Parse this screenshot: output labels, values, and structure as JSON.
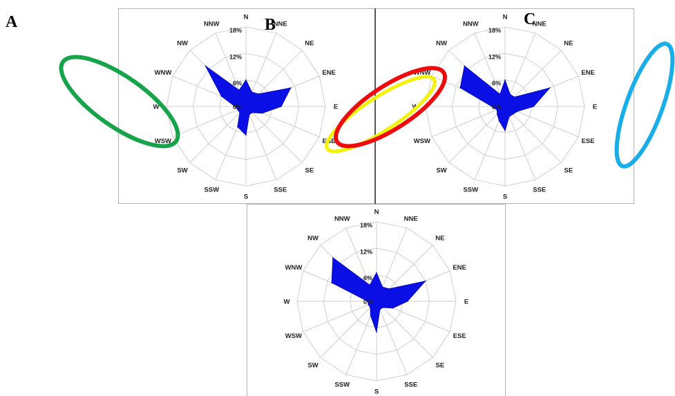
{
  "panel_letters": {
    "a": "A",
    "b": "B",
    "c": "C"
  },
  "chart_data": [
    {
      "type": "radar",
      "title": "",
      "directions": [
        "N",
        "NNE",
        "NE",
        "ENE",
        "E",
        "ESE",
        "SE",
        "SSE",
        "S",
        "SSW",
        "SW",
        "WSW",
        "W",
        "WNW",
        "NW",
        "NNW"
      ],
      "ring_labels": [
        "0%",
        "6%",
        "12%",
        "18%"
      ],
      "rmax": 18,
      "values": [
        6,
        3.5,
        4,
        11,
        8,
        4,
        2,
        2,
        6.5,
        5,
        2,
        2,
        2.5,
        6,
        13,
        4
      ],
      "color": "#0a0fe6"
    },
    {
      "type": "radar",
      "title": "",
      "directions": [
        "N",
        "NNE",
        "NE",
        "ENE",
        "E",
        "ESE",
        "SE",
        "SSE",
        "S",
        "SSW",
        "SW",
        "WSW",
        "W",
        "WNW",
        "NW",
        "NNW"
      ],
      "ring_labels": [
        "0%",
        "6%",
        "12%",
        "18%"
      ],
      "rmax": 18,
      "values": [
        6,
        3,
        3,
        11,
        6.5,
        3,
        2.5,
        2.5,
        5.5,
        3.5,
        2.5,
        2,
        3,
        11,
        13,
        3
      ],
      "color": "#0a0fe6"
    },
    {
      "type": "radar",
      "title": "",
      "directions": [
        "N",
        "NNE",
        "NE",
        "ENE",
        "E",
        "ESE",
        "SE",
        "SSE",
        "S",
        "SSW",
        "SW",
        "WSW",
        "W",
        "WNW",
        "NW",
        "NNW"
      ],
      "ring_labels": [
        "0%",
        "6%",
        "12%",
        "18%"
      ],
      "rmax": 18,
      "values": [
        6.5,
        3.5,
        4,
        12,
        7,
        4,
        2,
        2,
        7,
        3.5,
        2,
        2,
        2,
        11,
        14,
        4
      ],
      "color": "#0a0fe6"
    }
  ],
  "annotations": [
    {
      "shape": "ellipse",
      "color": "#16a34a"
    },
    {
      "shape": "ellipse",
      "color": "#f2f20a"
    },
    {
      "shape": "ellipse",
      "color": "#ee0b0b"
    },
    {
      "shape": "ellipse",
      "color": "#1aaee8"
    }
  ]
}
